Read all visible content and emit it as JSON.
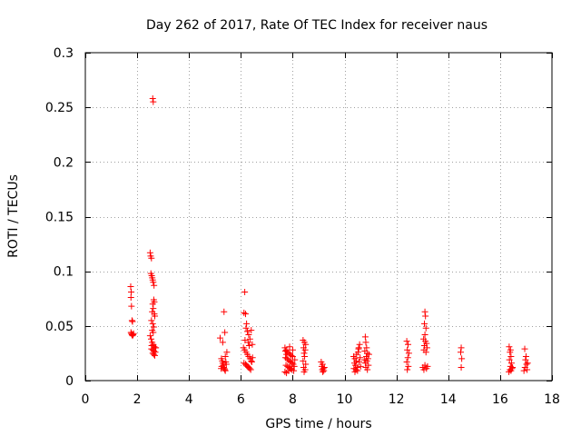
{
  "chart_data": {
    "type": "scatter",
    "title": "Day 262 of 2017, Rate Of TEC Index for receiver naus",
    "xlabel": "GPS time / hours",
    "ylabel": "ROTI / TECUs",
    "xlim": [
      0,
      18
    ],
    "ylim": [
      0,
      0.3
    ],
    "xticks": [
      0,
      2,
      4,
      6,
      8,
      10,
      12,
      14,
      16,
      18
    ],
    "xtick_labels": [
      "0",
      "2",
      "4",
      "6",
      "8",
      "10",
      "12",
      "14",
      "16",
      "18"
    ],
    "yticks": [
      0,
      0.05,
      0.1,
      0.15,
      0.2,
      0.25,
      0.3
    ],
    "ytick_labels": [
      "0",
      "0.05",
      "0.1",
      "0.15",
      "0.2",
      "0.25",
      "0.3"
    ],
    "grid": true,
    "marker": "+",
    "color": "#ff0000",
    "series": [
      {
        "name": "ROTI",
        "points": [
          [
            1.75,
            0.086
          ],
          [
            1.77,
            0.081
          ],
          [
            1.76,
            0.076
          ],
          [
            1.78,
            0.068
          ],
          [
            1.8,
            0.055
          ],
          [
            1.82,
            0.054
          ],
          [
            1.76,
            0.044
          ],
          [
            1.78,
            0.043
          ],
          [
            1.8,
            0.042
          ],
          [
            1.82,
            0.041
          ],
          [
            1.84,
            0.042
          ],
          [
            1.86,
            0.043
          ],
          [
            2.6,
            0.258
          ],
          [
            2.62,
            0.255
          ],
          [
            2.5,
            0.117
          ],
          [
            2.52,
            0.114
          ],
          [
            2.55,
            0.112
          ],
          [
            2.53,
            0.098
          ],
          [
            2.56,
            0.096
          ],
          [
            2.58,
            0.094
          ],
          [
            2.6,
            0.092
          ],
          [
            2.62,
            0.09
          ],
          [
            2.65,
            0.087
          ],
          [
            2.64,
            0.074
          ],
          [
            2.66,
            0.072
          ],
          [
            2.6,
            0.07
          ],
          [
            2.62,
            0.066
          ],
          [
            2.58,
            0.063
          ],
          [
            2.66,
            0.061
          ],
          [
            2.68,
            0.059
          ],
          [
            2.55,
            0.055
          ],
          [
            2.6,
            0.052
          ],
          [
            2.64,
            0.049
          ],
          [
            2.58,
            0.046
          ],
          [
            2.62,
            0.044
          ],
          [
            2.5,
            0.041
          ],
          [
            2.54,
            0.038
          ],
          [
            2.58,
            0.035
          ],
          [
            2.62,
            0.033
          ],
          [
            2.66,
            0.031
          ],
          [
            2.7,
            0.03
          ],
          [
            2.55,
            0.029
          ],
          [
            2.6,
            0.028
          ],
          [
            2.65,
            0.027
          ],
          [
            2.7,
            0.026
          ],
          [
            2.6,
            0.025
          ],
          [
            2.64,
            0.024
          ],
          [
            2.68,
            0.023
          ],
          [
            2.56,
            0.032
          ],
          [
            2.72,
            0.03
          ],
          [
            5.2,
            0.039
          ],
          [
            5.35,
            0.063
          ],
          [
            5.38,
            0.044
          ],
          [
            5.3,
            0.035
          ],
          [
            5.25,
            0.02
          ],
          [
            5.28,
            0.018
          ],
          [
            5.3,
            0.016
          ],
          [
            5.32,
            0.014
          ],
          [
            5.34,
            0.012
          ],
          [
            5.36,
            0.011
          ],
          [
            5.38,
            0.01
          ],
          [
            5.4,
            0.009
          ],
          [
            5.26,
            0.013
          ],
          [
            5.42,
            0.017
          ],
          [
            5.44,
            0.015
          ],
          [
            5.24,
            0.011
          ],
          [
            5.46,
            0.026
          ],
          [
            5.4,
            0.022
          ],
          [
            6.15,
            0.081
          ],
          [
            6.12,
            0.062
          ],
          [
            6.18,
            0.061
          ],
          [
            6.22,
            0.052
          ],
          [
            6.2,
            0.048
          ],
          [
            6.25,
            0.045
          ],
          [
            6.3,
            0.042
          ],
          [
            6.35,
            0.038
          ],
          [
            6.28,
            0.035
          ],
          [
            6.32,
            0.032
          ],
          [
            6.1,
            0.03
          ],
          [
            6.15,
            0.028
          ],
          [
            6.2,
            0.026
          ],
          [
            6.25,
            0.024
          ],
          [
            6.3,
            0.022
          ],
          [
            6.35,
            0.02
          ],
          [
            6.4,
            0.018
          ],
          [
            6.12,
            0.016
          ],
          [
            6.18,
            0.015
          ],
          [
            6.22,
            0.014
          ],
          [
            6.26,
            0.013
          ],
          [
            6.3,
            0.012
          ],
          [
            6.34,
            0.011
          ],
          [
            6.38,
            0.01
          ],
          [
            6.42,
            0.017
          ],
          [
            6.45,
            0.021
          ],
          [
            6.16,
            0.037
          ],
          [
            6.4,
            0.046
          ],
          [
            6.44,
            0.033
          ],
          [
            7.7,
            0.03
          ],
          [
            7.75,
            0.028
          ],
          [
            7.8,
            0.026
          ],
          [
            7.85,
            0.025
          ],
          [
            7.9,
            0.024
          ],
          [
            7.95,
            0.023
          ],
          [
            8.0,
            0.022
          ],
          [
            7.72,
            0.021
          ],
          [
            7.78,
            0.02
          ],
          [
            7.82,
            0.019
          ],
          [
            7.88,
            0.018
          ],
          [
            7.92,
            0.017
          ],
          [
            7.98,
            0.016
          ],
          [
            8.02,
            0.015
          ],
          [
            7.74,
            0.014
          ],
          [
            7.8,
            0.013
          ],
          [
            7.86,
            0.012
          ],
          [
            7.9,
            0.011
          ],
          [
            7.96,
            0.01
          ],
          [
            8.04,
            0.009
          ],
          [
            7.7,
            0.008
          ],
          [
            7.76,
            0.007
          ],
          [
            7.84,
            0.009
          ],
          [
            7.94,
            0.011
          ],
          [
            8.06,
            0.013
          ],
          [
            8.08,
            0.019
          ],
          [
            7.72,
            0.027
          ],
          [
            8.0,
            0.028
          ],
          [
            7.88,
            0.031
          ],
          [
            7.76,
            0.024
          ],
          [
            8.4,
            0.037
          ],
          [
            8.45,
            0.035
          ],
          [
            8.5,
            0.033
          ],
          [
            8.42,
            0.03
          ],
          [
            8.48,
            0.028
          ],
          [
            8.44,
            0.025
          ],
          [
            8.46,
            0.022
          ],
          [
            8.4,
            0.018
          ],
          [
            8.5,
            0.015
          ],
          [
            8.42,
            0.012
          ],
          [
            8.48,
            0.01
          ],
          [
            8.44,
            0.008
          ],
          [
            9.1,
            0.017
          ],
          [
            9.15,
            0.015
          ],
          [
            9.12,
            0.013
          ],
          [
            9.18,
            0.011
          ],
          [
            9.14,
            0.01
          ],
          [
            9.2,
            0.009
          ],
          [
            9.16,
            0.008
          ],
          [
            9.22,
            0.012
          ],
          [
            10.35,
            0.022
          ],
          [
            10.4,
            0.02
          ],
          [
            10.45,
            0.018
          ],
          [
            10.38,
            0.016
          ],
          [
            10.42,
            0.014
          ],
          [
            10.48,
            0.012
          ],
          [
            10.36,
            0.011
          ],
          [
            10.44,
            0.01
          ],
          [
            10.5,
            0.009
          ],
          [
            10.4,
            0.008
          ],
          [
            10.46,
            0.024
          ],
          [
            10.52,
            0.026
          ],
          [
            10.55,
            0.03
          ],
          [
            10.58,
            0.033
          ],
          [
            10.6,
            0.021
          ],
          [
            10.56,
            0.017
          ],
          [
            10.62,
            0.013
          ],
          [
            10.54,
            0.029
          ],
          [
            10.8,
            0.04
          ],
          [
            10.82,
            0.035
          ],
          [
            10.85,
            0.03
          ],
          [
            10.78,
            0.027
          ],
          [
            10.88,
            0.025
          ],
          [
            10.84,
            0.022
          ],
          [
            10.9,
            0.02
          ],
          [
            10.86,
            0.018
          ],
          [
            10.8,
            0.016
          ],
          [
            10.92,
            0.014
          ],
          [
            10.82,
            0.012
          ],
          [
            10.88,
            0.01
          ],
          [
            10.94,
            0.024
          ],
          [
            10.76,
            0.019
          ],
          [
            12.4,
            0.036
          ],
          [
            12.45,
            0.033
          ],
          [
            12.42,
            0.028
          ],
          [
            12.48,
            0.025
          ],
          [
            12.44,
            0.021
          ],
          [
            12.4,
            0.017
          ],
          [
            12.46,
            0.013
          ],
          [
            12.42,
            0.01
          ],
          [
            13.1,
            0.063
          ],
          [
            13.12,
            0.059
          ],
          [
            13.08,
            0.052
          ],
          [
            13.14,
            0.048
          ],
          [
            13.1,
            0.042
          ],
          [
            13.05,
            0.038
          ],
          [
            13.12,
            0.036
          ],
          [
            13.16,
            0.034
          ],
          [
            13.08,
            0.032
          ],
          [
            13.18,
            0.03
          ],
          [
            13.06,
            0.028
          ],
          [
            13.14,
            0.026
          ],
          [
            13.1,
            0.014
          ],
          [
            13.02,
            0.012
          ],
          [
            13.16,
            0.011
          ],
          [
            13.06,
            0.01
          ],
          [
            13.2,
            0.013
          ],
          [
            14.5,
            0.03
          ],
          [
            14.48,
            0.026
          ],
          [
            14.52,
            0.02
          ],
          [
            14.5,
            0.012
          ],
          [
            16.35,
            0.031
          ],
          [
            16.4,
            0.028
          ],
          [
            16.38,
            0.026
          ],
          [
            16.42,
            0.022
          ],
          [
            16.36,
            0.019
          ],
          [
            16.44,
            0.016
          ],
          [
            16.4,
            0.013
          ],
          [
            16.46,
            0.011
          ],
          [
            16.38,
            0.01
          ],
          [
            16.42,
            0.009
          ],
          [
            16.34,
            0.008
          ],
          [
            16.48,
            0.012
          ],
          [
            16.95,
            0.029
          ],
          [
            17.0,
            0.022
          ],
          [
            16.98,
            0.019
          ],
          [
            17.02,
            0.015
          ],
          [
            16.96,
            0.012
          ],
          [
            17.04,
            0.01
          ],
          [
            16.92,
            0.009
          ],
          [
            17.06,
            0.016
          ]
        ]
      }
    ]
  }
}
